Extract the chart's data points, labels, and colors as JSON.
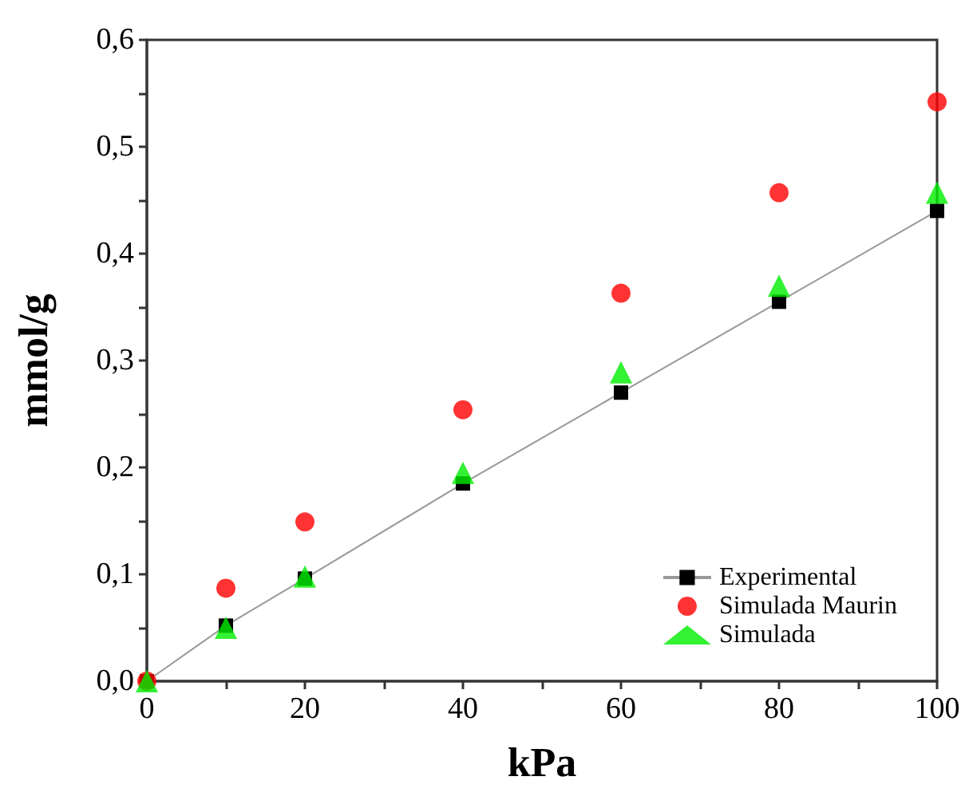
{
  "chart_data": {
    "type": "scatter",
    "xlabel": "kPa",
    "ylabel": "mmol/g",
    "xlim": [
      0,
      100
    ],
    "ylim": [
      0,
      0.6
    ],
    "xticks": [
      {
        "value": 0,
        "label": "0"
      },
      {
        "value": 10,
        "label": null
      },
      {
        "value": 20,
        "label": "20"
      },
      {
        "value": 30,
        "label": null
      },
      {
        "value": 40,
        "label": "40"
      },
      {
        "value": 50,
        "label": null
      },
      {
        "value": 60,
        "label": "60"
      },
      {
        "value": 70,
        "label": null
      },
      {
        "value": 80,
        "label": "80"
      },
      {
        "value": 90,
        "label": null
      },
      {
        "value": 100,
        "label": "100"
      }
    ],
    "yticks": [
      {
        "value": 0,
        "label": "0,0"
      },
      {
        "value": 0.05,
        "label": null
      },
      {
        "value": 0.1,
        "label": "0,1"
      },
      {
        "value": 0.15,
        "label": null
      },
      {
        "value": 0.2,
        "label": "0,2"
      },
      {
        "value": 0.25,
        "label": null
      },
      {
        "value": 0.3,
        "label": "0,3"
      },
      {
        "value": 0.35,
        "label": null
      },
      {
        "value": 0.4,
        "label": "0,4"
      },
      {
        "value": 0.45,
        "label": null
      },
      {
        "value": 0.5,
        "label": "0,5"
      },
      {
        "value": 0.55,
        "label": null
      },
      {
        "value": 0.6,
        "label": "0,6"
      }
    ],
    "grid": false,
    "legend": "bottom right",
    "series": [
      {
        "name": "Experimental",
        "type": "line",
        "marker": "square",
        "color": "#000000",
        "x": [
          0,
          10,
          20,
          40,
          60,
          80,
          100
        ],
        "values": [
          0,
          0.052,
          0.096,
          0.185,
          0.27,
          0.355,
          0.44
        ]
      },
      {
        "name": "Simulada Maurin",
        "marker": "circle",
        "color": "#ff0000",
        "x": [
          0,
          10,
          20,
          40,
          60,
          80,
          100
        ],
        "values": [
          0,
          0.087,
          0.149,
          0.254,
          0.363,
          0.457,
          0.542
        ]
      },
      {
        "name": "Simulada",
        "marker": "triangle",
        "color": "#00ee00",
        "x": [
          0,
          10,
          20,
          40,
          60,
          80,
          100
        ],
        "values": [
          0,
          0.05,
          0.098,
          0.195,
          0.289,
          0.37,
          0.457
        ]
      }
    ]
  }
}
